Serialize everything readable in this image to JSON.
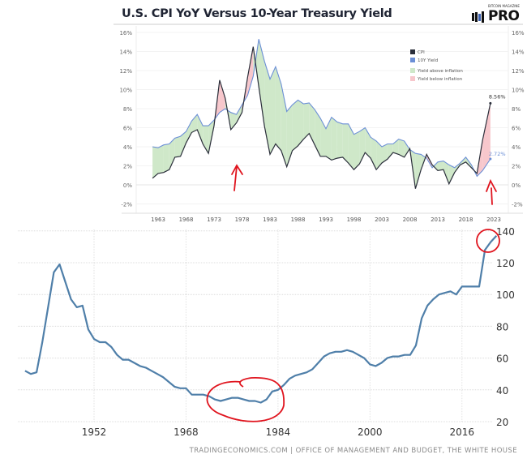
{
  "chart_data": [
    {
      "type": "area",
      "title": "U.S. CPI YoY Versus 10-Year Treasury Yield",
      "logo_text": "BITCOIN MAGAZINE PRO",
      "x_ticks": [
        "1963",
        "1968",
        "1973",
        "1978",
        "1983",
        "1988",
        "1993",
        "1998",
        "2003",
        "2008",
        "2013",
        "2018",
        "2023"
      ],
      "y_ticks": [
        "-2%",
        "0%",
        "2%",
        "4%",
        "6%",
        "8%",
        "10%",
        "12%",
        "14%",
        "16%"
      ],
      "ylim": [
        -2.5,
        16.5
      ],
      "grid": true,
      "legend_position": "top-right",
      "legend": [
        "CPI",
        "10Y Yield",
        "Yield above inflation",
        "Yield below inflation"
      ],
      "colors": {
        "cpi": "#2a2e3a",
        "yield": "#6b8fd6",
        "above": "#cfe8c9",
        "below": "#f7c7cc"
      },
      "annotations": {
        "cpi_last": "8.56%",
        "yield_last": "2.72%"
      },
      "x": [
        1962,
        1963,
        1964,
        1965,
        1966,
        1967,
        1968,
        1969,
        1970,
        1971,
        1972,
        1973,
        1974,
        1975,
        1976,
        1977,
        1978,
        1979,
        1980,
        1981,
        1982,
        1983,
        1984,
        1985,
        1986,
        1987,
        1988,
        1989,
        1990,
        1991,
        1992,
        1993,
        1994,
        1995,
        1996,
        1997,
        1998,
        1999,
        2000,
        2001,
        2002,
        2003,
        2004,
        2005,
        2006,
        2007,
        2008,
        2009,
        2010,
        2011,
        2012,
        2013,
        2014,
        2015,
        2016,
        2017,
        2018,
        2019,
        2020,
        2021,
        2022.4
      ],
      "series": [
        {
          "name": "CPI",
          "values": [
            0.7,
            1.2,
            1.3,
            1.6,
            2.9,
            3.0,
            4.4,
            5.5,
            5.8,
            4.3,
            3.3,
            6.2,
            11.0,
            9.1,
            5.8,
            6.5,
            7.6,
            11.3,
            14.5,
            10.3,
            6.2,
            3.2,
            4.3,
            3.6,
            1.9,
            3.6,
            4.1,
            4.8,
            5.4,
            4.2,
            3.0,
            3.0,
            2.6,
            2.8,
            2.9,
            2.3,
            1.6,
            2.2,
            3.4,
            2.8,
            1.6,
            2.3,
            2.7,
            3.4,
            3.2,
            2.9,
            3.8,
            -0.4,
            1.6,
            3.2,
            2.1,
            1.5,
            1.6,
            0.1,
            1.3,
            2.1,
            2.4,
            1.8,
            1.2,
            4.7,
            8.56
          ]
        },
        {
          "name": "10Y Yield",
          "values": [
            4.0,
            3.9,
            4.2,
            4.3,
            4.9,
            5.1,
            5.6,
            6.7,
            7.4,
            6.2,
            6.2,
            6.8,
            7.6,
            8.0,
            7.6,
            7.4,
            8.4,
            9.4,
            11.4,
            15.3,
            13.0,
            11.1,
            12.4,
            10.6,
            7.7,
            8.4,
            8.9,
            8.5,
            8.6,
            7.9,
            7.0,
            5.9,
            7.1,
            6.6,
            6.4,
            6.4,
            5.3,
            5.6,
            6.0,
            5.0,
            4.6,
            4.0,
            4.3,
            4.3,
            4.8,
            4.6,
            3.7,
            3.3,
            3.2,
            2.8,
            1.8,
            2.4,
            2.5,
            2.1,
            1.8,
            2.3,
            2.9,
            2.1,
            0.9,
            1.5,
            2.72
          ]
        }
      ]
    },
    {
      "type": "line",
      "x_ticks": [
        "1952",
        "1968",
        "1984",
        "2000",
        "2016"
      ],
      "y_ticks": [
        "20",
        "40",
        "60",
        "80",
        "100",
        "120",
        "140"
      ],
      "ylim": [
        20,
        140
      ],
      "grid": true,
      "color": "#4f7fa9",
      "x": [
        1940,
        1941,
        1942,
        1943,
        1944,
        1945,
        1946,
        1947,
        1948,
        1949,
        1950,
        1951,
        1952,
        1953,
        1954,
        1955,
        1956,
        1957,
        1958,
        1959,
        1960,
        1961,
        1962,
        1963,
        1964,
        1965,
        1966,
        1967,
        1968,
        1969,
        1970,
        1971,
        1972,
        1973,
        1974,
        1975,
        1976,
        1977,
        1978,
        1979,
        1980,
        1981,
        1982,
        1983,
        1984,
        1985,
        1986,
        1987,
        1988,
        1989,
        1990,
        1991,
        1992,
        1993,
        1994,
        1995,
        1996,
        1997,
        1998,
        1999,
        2000,
        2001,
        2002,
        2003,
        2004,
        2005,
        2006,
        2007,
        2008,
        2009,
        2010,
        2011,
        2012,
        2013,
        2014,
        2015,
        2016,
        2017,
        2018,
        2019,
        2020,
        2021,
        2022
      ],
      "values": [
        52,
        50,
        51,
        70,
        92,
        114,
        119,
        108,
        97,
        92,
        93,
        78,
        72,
        70,
        70,
        67,
        62,
        59,
        59,
        57,
        55,
        54,
        52,
        50,
        48,
        45,
        42,
        41,
        41,
        37,
        37,
        37,
        36,
        34,
        33,
        34,
        35,
        35,
        34,
        33,
        33,
        32,
        34,
        39,
        40,
        43,
        47,
        49,
        50,
        51,
        53,
        57,
        61,
        63,
        64,
        64,
        65,
        64,
        62,
        60,
        56,
        55,
        57,
        60,
        61,
        61,
        62,
        62,
        68,
        85,
        93,
        97,
        100,
        101,
        102,
        100,
        105,
        105,
        105,
        105,
        128,
        133,
        137
      ],
      "source": "TRADINGECONOMICS.COM  |  OFFICE OF MANAGEMENT AND BUDGET, THE WHITE HOUSE"
    }
  ]
}
